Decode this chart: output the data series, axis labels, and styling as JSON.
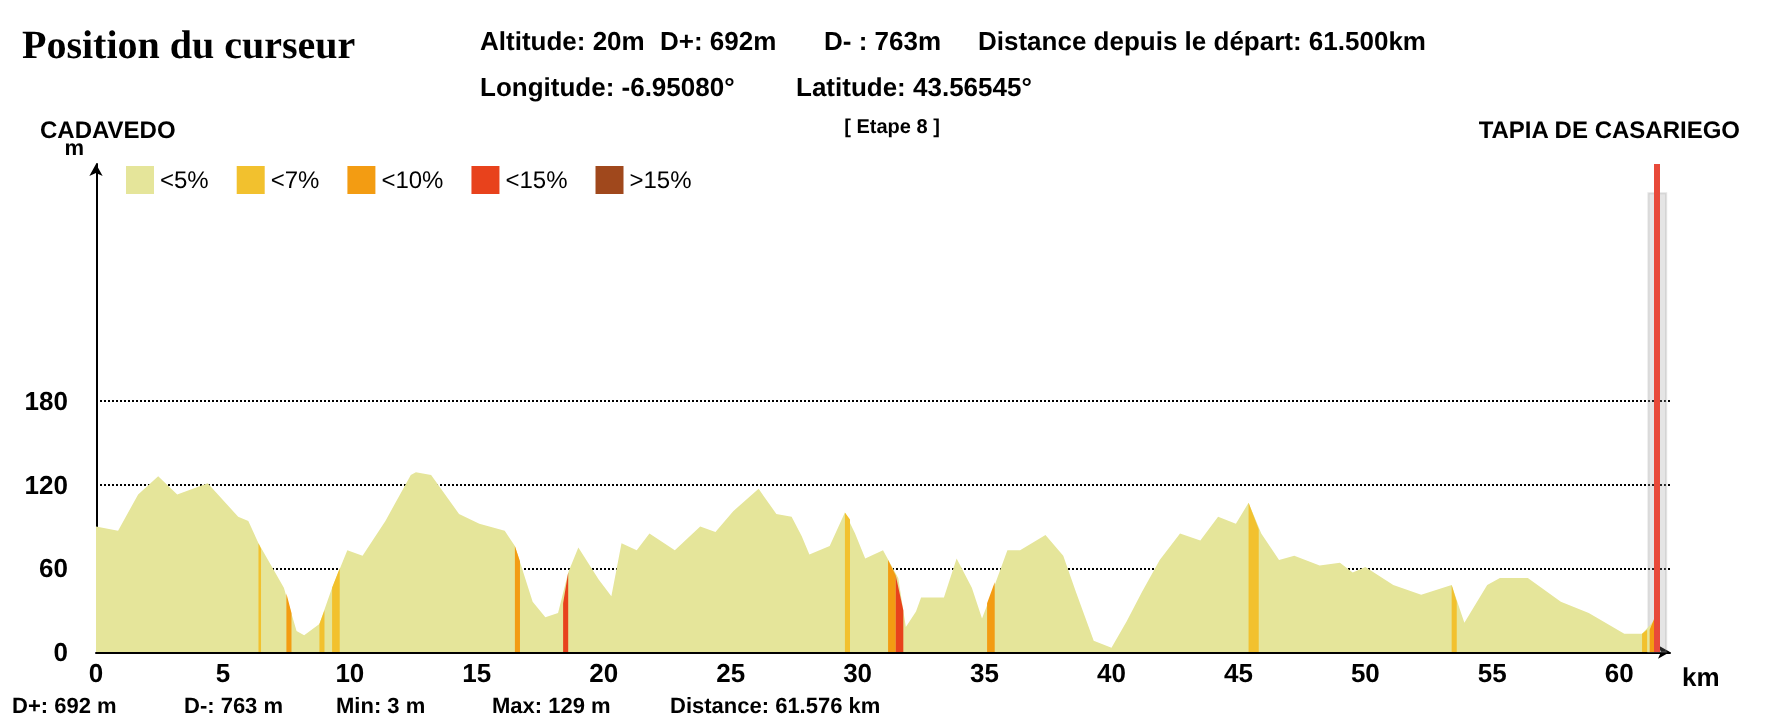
{
  "chart_data": {
    "type": "area",
    "title": "Position du curseur",
    "xlabel": "km",
    "ylabel": "m",
    "annotations": [
      "Altitude: 20m",
      "D+: 692m",
      "D- : 763m",
      "Distance depuis le départ: 61.500km",
      "Longitude: -6.95080°",
      "Latitude: 43.56545°",
      "CADAVEDO",
      "[ Etape 8 ]",
      "TAPIA DE CASARIEGO",
      "D+: 692 m",
      "D-: 763 m",
      "Min: 3 m",
      "Max: 129 m",
      "Distance: 61.576 km"
    ],
    "xlim": [
      0,
      62
    ],
    "xticks": [
      0,
      5,
      10,
      15,
      20,
      25,
      30,
      35,
      40,
      45,
      50,
      55,
      60
    ],
    "ylim": [
      0,
      350
    ],
    "yticks": [
      0,
      60,
      120,
      180
    ],
    "grid": "y",
    "legend": "top left",
    "tick_labels": true,
    "ref_lines": [
      {
        "axis": "x",
        "value": 61.5,
        "label": null,
        "color": "#e84a3a"
      }
    ],
    "bands": [
      {
        "axis": "x",
        "from": 61.15,
        "to": 61.85,
        "label": null,
        "color": "#999999"
      }
    ],
    "series": [
      {
        "name": "<5%",
        "color": "#e5e59a",
        "x": [
          0,
          0.87,
          1.66,
          2.45,
          3.2,
          4.4,
          5.6,
          6.0,
          6.4,
          7.4,
          7.9,
          8.2,
          8.8,
          9.3,
          9.9,
          10.5,
          11.4,
          12.4,
          12.6,
          13.2,
          14.3,
          15.1,
          16.1,
          16.5,
          17.2,
          17.7,
          18.2,
          18.6,
          19.0,
          19.8,
          20.3,
          20.7,
          21.3,
          21.8,
          22.8,
          23.8,
          24.4,
          25.1,
          26.1,
          26.8,
          27.4,
          27.8,
          28.1,
          28.9,
          29.5,
          29.9,
          30.3,
          31.0,
          31.6,
          31.9,
          32.3,
          32.5,
          33.4,
          33.9,
          34.5,
          34.9,
          35.3,
          35.9,
          36.4,
          37.4,
          38.1,
          38.6,
          39.3,
          40.0,
          40.6,
          41.2,
          41.9,
          42.7,
          43.5,
          44.2,
          44.9,
          45.4,
          45.9,
          46.6,
          47.2,
          48.2,
          49.0,
          49.5,
          50.0,
          51.1,
          52.2,
          53.4,
          53.9,
          54.8,
          55.3,
          56.4,
          57.7,
          58.8,
          60.2,
          60.9,
          61.5
        ],
        "values": [
          90,
          87,
          113,
          126,
          113,
          121,
          97,
          94,
          78,
          46,
          15,
          12,
          20,
          46,
          73,
          69,
          94,
          127,
          129,
          127,
          99,
          92,
          87,
          76,
          36,
          25,
          28,
          57,
          75,
          52,
          40,
          78,
          73,
          85,
          73,
          90,
          86,
          101,
          117,
          99,
          97,
          83,
          70,
          76,
          100,
          85,
          67,
          73,
          53,
          18,
          29,
          39,
          39,
          67,
          46,
          24,
          43,
          73,
          73,
          84,
          69,
          43,
          8,
          3,
          22,
          43,
          66,
          85,
          80,
          97,
          92,
          107,
          85,
          66,
          69,
          62,
          64,
          57,
          61,
          48,
          41,
          48,
          21,
          48,
          53,
          53,
          36,
          28,
          13,
          13,
          25
        ]
      },
      {
        "name": "<7%",
        "color": "#f2c12e",
        "x": [
          6.4,
          6.5,
          6.6,
          8.8,
          9.0,
          9.1,
          9.3,
          9.6,
          9.7,
          29.5,
          29.7,
          29.8,
          45.4,
          45.8,
          45.9,
          53.4,
          53.6,
          53.7,
          60.9,
          61.1
        ],
        "values": [
          78,
          74,
          null,
          20,
          30,
          null,
          46,
          60,
          null,
          100,
          95,
          null,
          107,
          88,
          null,
          48,
          36,
          null,
          13,
          16
        ]
      },
      {
        "name": "<10%",
        "color": "#f39c12",
        "x": [
          7.5,
          7.7,
          7.8,
          16.5,
          16.7,
          16.8,
          31.2,
          31.5,
          31.6,
          35.1,
          35.4,
          35.5,
          61.2,
          61.4
        ],
        "values": [
          42,
          28,
          null,
          76,
          65,
          null,
          66,
          55,
          null,
          35,
          50,
          null,
          16,
          25
        ]
      },
      {
        "name": "<15%",
        "color": "#e8421c",
        "x": [
          18.4,
          18.6,
          18.7,
          31.5,
          31.8
        ],
        "values": [
          35,
          57,
          null,
          55,
          30
        ]
      },
      {
        "name": ">15%",
        "color": "#a0481c"
      }
    ]
  }
}
